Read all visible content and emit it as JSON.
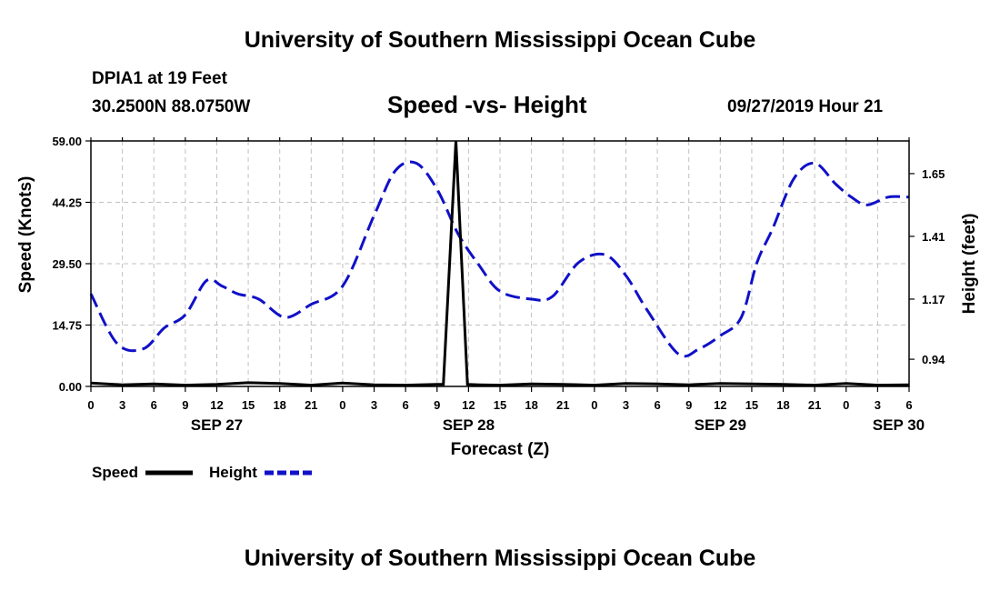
{
  "header": {
    "title": "University of Southern Mississippi Ocean Cube",
    "station_name": "DPIA1 at 19 Feet",
    "station_coords": "30.2500N 88.0750W",
    "chart_title": "Speed -vs- Height",
    "datetime": "09/27/2019 Hour 21"
  },
  "footer": {
    "title": "University of Southern Mississippi Ocean Cube"
  },
  "colors": {
    "speed": "#000000",
    "height": "#1010c8",
    "grid": "#c0c0c0"
  },
  "chart_data": {
    "type": "line",
    "title": "Speed -vs- Height",
    "xlabel": "Forecast (Z)",
    "ylabel": "Speed (Knots)",
    "y2label": "Height (feet)",
    "x_hours_range": [
      0,
      78
    ],
    "x_tick_step_hours": 3,
    "x_tick_labels": [
      "0",
      "3",
      "6",
      "9",
      "12",
      "15",
      "18",
      "21",
      "0",
      "3",
      "6",
      "9",
      "12",
      "15",
      "18",
      "21",
      "0",
      "3",
      "6",
      "9",
      "12",
      "15",
      "18",
      "21",
      "0",
      "3",
      "6"
    ],
    "date_labels": [
      {
        "hour": 12,
        "label": "SEP 27"
      },
      {
        "hour": 36,
        "label": "SEP 28"
      },
      {
        "hour": 60,
        "label": "SEP 29"
      },
      {
        "hour": 77,
        "label": "SEP 30"
      }
    ],
    "ylim": [
      0,
      59
    ],
    "y_ticks": [
      "0.00",
      "14.75",
      "29.50",
      "44.25",
      "59.00"
    ],
    "y2lim": [
      0.836,
      1.775
    ],
    "y2_ticks": [
      "0.94",
      "1.17",
      "1.41",
      "1.65"
    ],
    "grid": true,
    "legend_placement": "bottom-left",
    "series": [
      {
        "name": "Speed",
        "axis": "left",
        "style": "solid",
        "x": [
          0,
          3,
          6,
          9,
          12,
          15,
          18,
          21,
          24,
          27,
          30,
          33,
          33.6,
          34.8,
          35.9,
          37,
          39,
          42,
          45,
          48,
          51,
          54,
          57,
          60,
          63,
          66,
          69,
          72,
          75,
          78
        ],
        "y": [
          0.8,
          0.4,
          0.6,
          0.3,
          0.5,
          0.9,
          0.7,
          0.3,
          0.8,
          0.4,
          0.3,
          0.5,
          0.5,
          59,
          0.5,
          0.4,
          0.3,
          0.6,
          0.5,
          0.3,
          0.7,
          0.6,
          0.4,
          0.7,
          0.6,
          0.5,
          0.3,
          0.7,
          0.3,
          0.4
        ]
      },
      {
        "name": "Height",
        "axis": "right",
        "style": "dashed",
        "x": [
          0,
          2.5,
          5,
          7,
          9,
          11,
          12.5,
          14,
          16,
          18.5,
          21,
          24,
          27,
          29,
          31,
          33,
          35,
          37,
          39,
          42,
          44,
          46.5,
          49,
          51,
          53,
          56,
          58,
          60,
          62,
          63.5,
          65,
          67,
          69,
          71,
          72.5,
          74,
          76,
          78
        ],
        "y": [
          1.19,
          1.0,
          0.98,
          1.06,
          1.11,
          1.24,
          1.22,
          1.19,
          1.17,
          1.1,
          1.15,
          1.22,
          1.49,
          1.66,
          1.69,
          1.59,
          1.42,
          1.3,
          1.2,
          1.17,
          1.18,
          1.31,
          1.34,
          1.26,
          1.13,
          0.96,
          0.98,
          1.03,
          1.1,
          1.31,
          1.44,
          1.63,
          1.69,
          1.61,
          1.56,
          1.53,
          1.56,
          1.56
        ]
      }
    ]
  }
}
